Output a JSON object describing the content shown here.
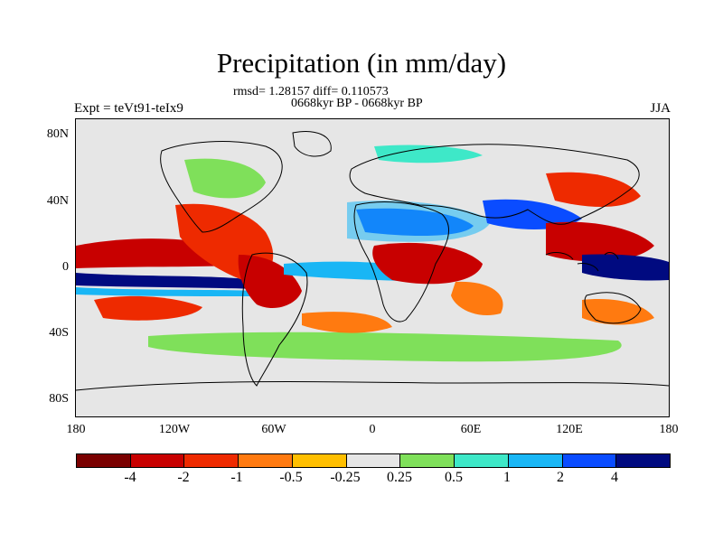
{
  "title": "Precipitation (in mm/day)",
  "stats": "rmsd= 1.28157 diff= 0.110573",
  "period": "0668kyr BP - 0668kyr BP",
  "experiment": "Expt = teVt91-teIx9",
  "season": "JJA",
  "lat_ticks": [
    "80N",
    "40N",
    "0",
    "40S",
    "80S"
  ],
  "lon_ticks": [
    "180",
    "120W",
    "60W",
    "0",
    "60E",
    "120E",
    "180"
  ],
  "colorbar": {
    "labels": [
      "-4",
      "-2",
      "-1",
      "-0.5",
      "-0.25",
      "0.25",
      "0.5",
      "1",
      "2",
      "4"
    ],
    "colors": [
      "#7a0000",
      "#c80000",
      "#ee2a00",
      "#ff7a10",
      "#ffbf00",
      "#e6e6e6",
      "#7fe05a",
      "#3ee8c8",
      "#19b6f5",
      "#0a4cff",
      "#000a80"
    ]
  }
}
